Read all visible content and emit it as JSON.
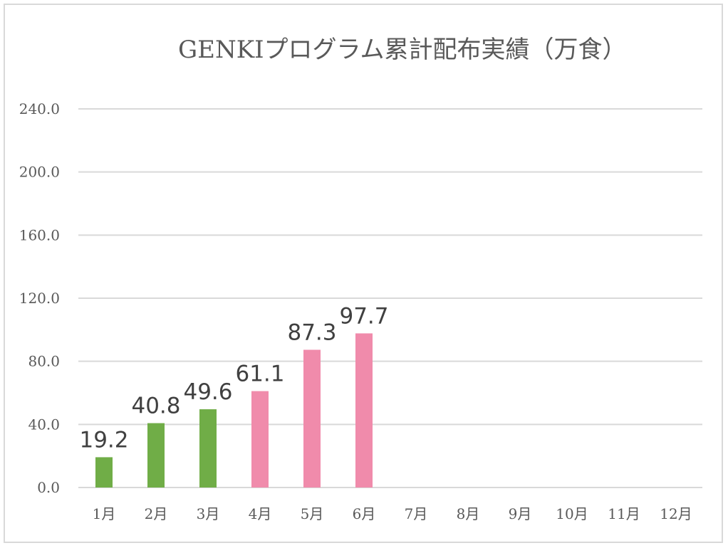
{
  "chart_data": {
    "type": "bar",
    "title": "GENKIプログラム累計配布実績（万食）",
    "categories": [
      "1月",
      "2月",
      "3月",
      "4月",
      "5月",
      "6月",
      "7月",
      "8月",
      "9月",
      "10月",
      "11月",
      "12月"
    ],
    "values": [
      19.2,
      40.8,
      49.6,
      61.1,
      87.3,
      97.7,
      null,
      null,
      null,
      null,
      null,
      null
    ],
    "data_labels": [
      "19.2",
      "40.8",
      "49.6",
      "61.1",
      "87.3",
      "97.7",
      "",
      "",
      "",
      "",
      "",
      ""
    ],
    "bar_colors": [
      "#70ad47",
      "#70ad47",
      "#70ad47",
      "#f08bab",
      "#f08bab",
      "#f08bab",
      "",
      "",
      "",
      "",
      "",
      ""
    ],
    "yticks": [
      "0.0",
      "40.0",
      "80.0",
      "120.0",
      "160.0",
      "200.0",
      "240.0"
    ],
    "ylim": [
      0,
      240
    ],
    "xlabel": "",
    "ylabel": "",
    "grid": true,
    "gridline_color": "#d9d9d9"
  }
}
